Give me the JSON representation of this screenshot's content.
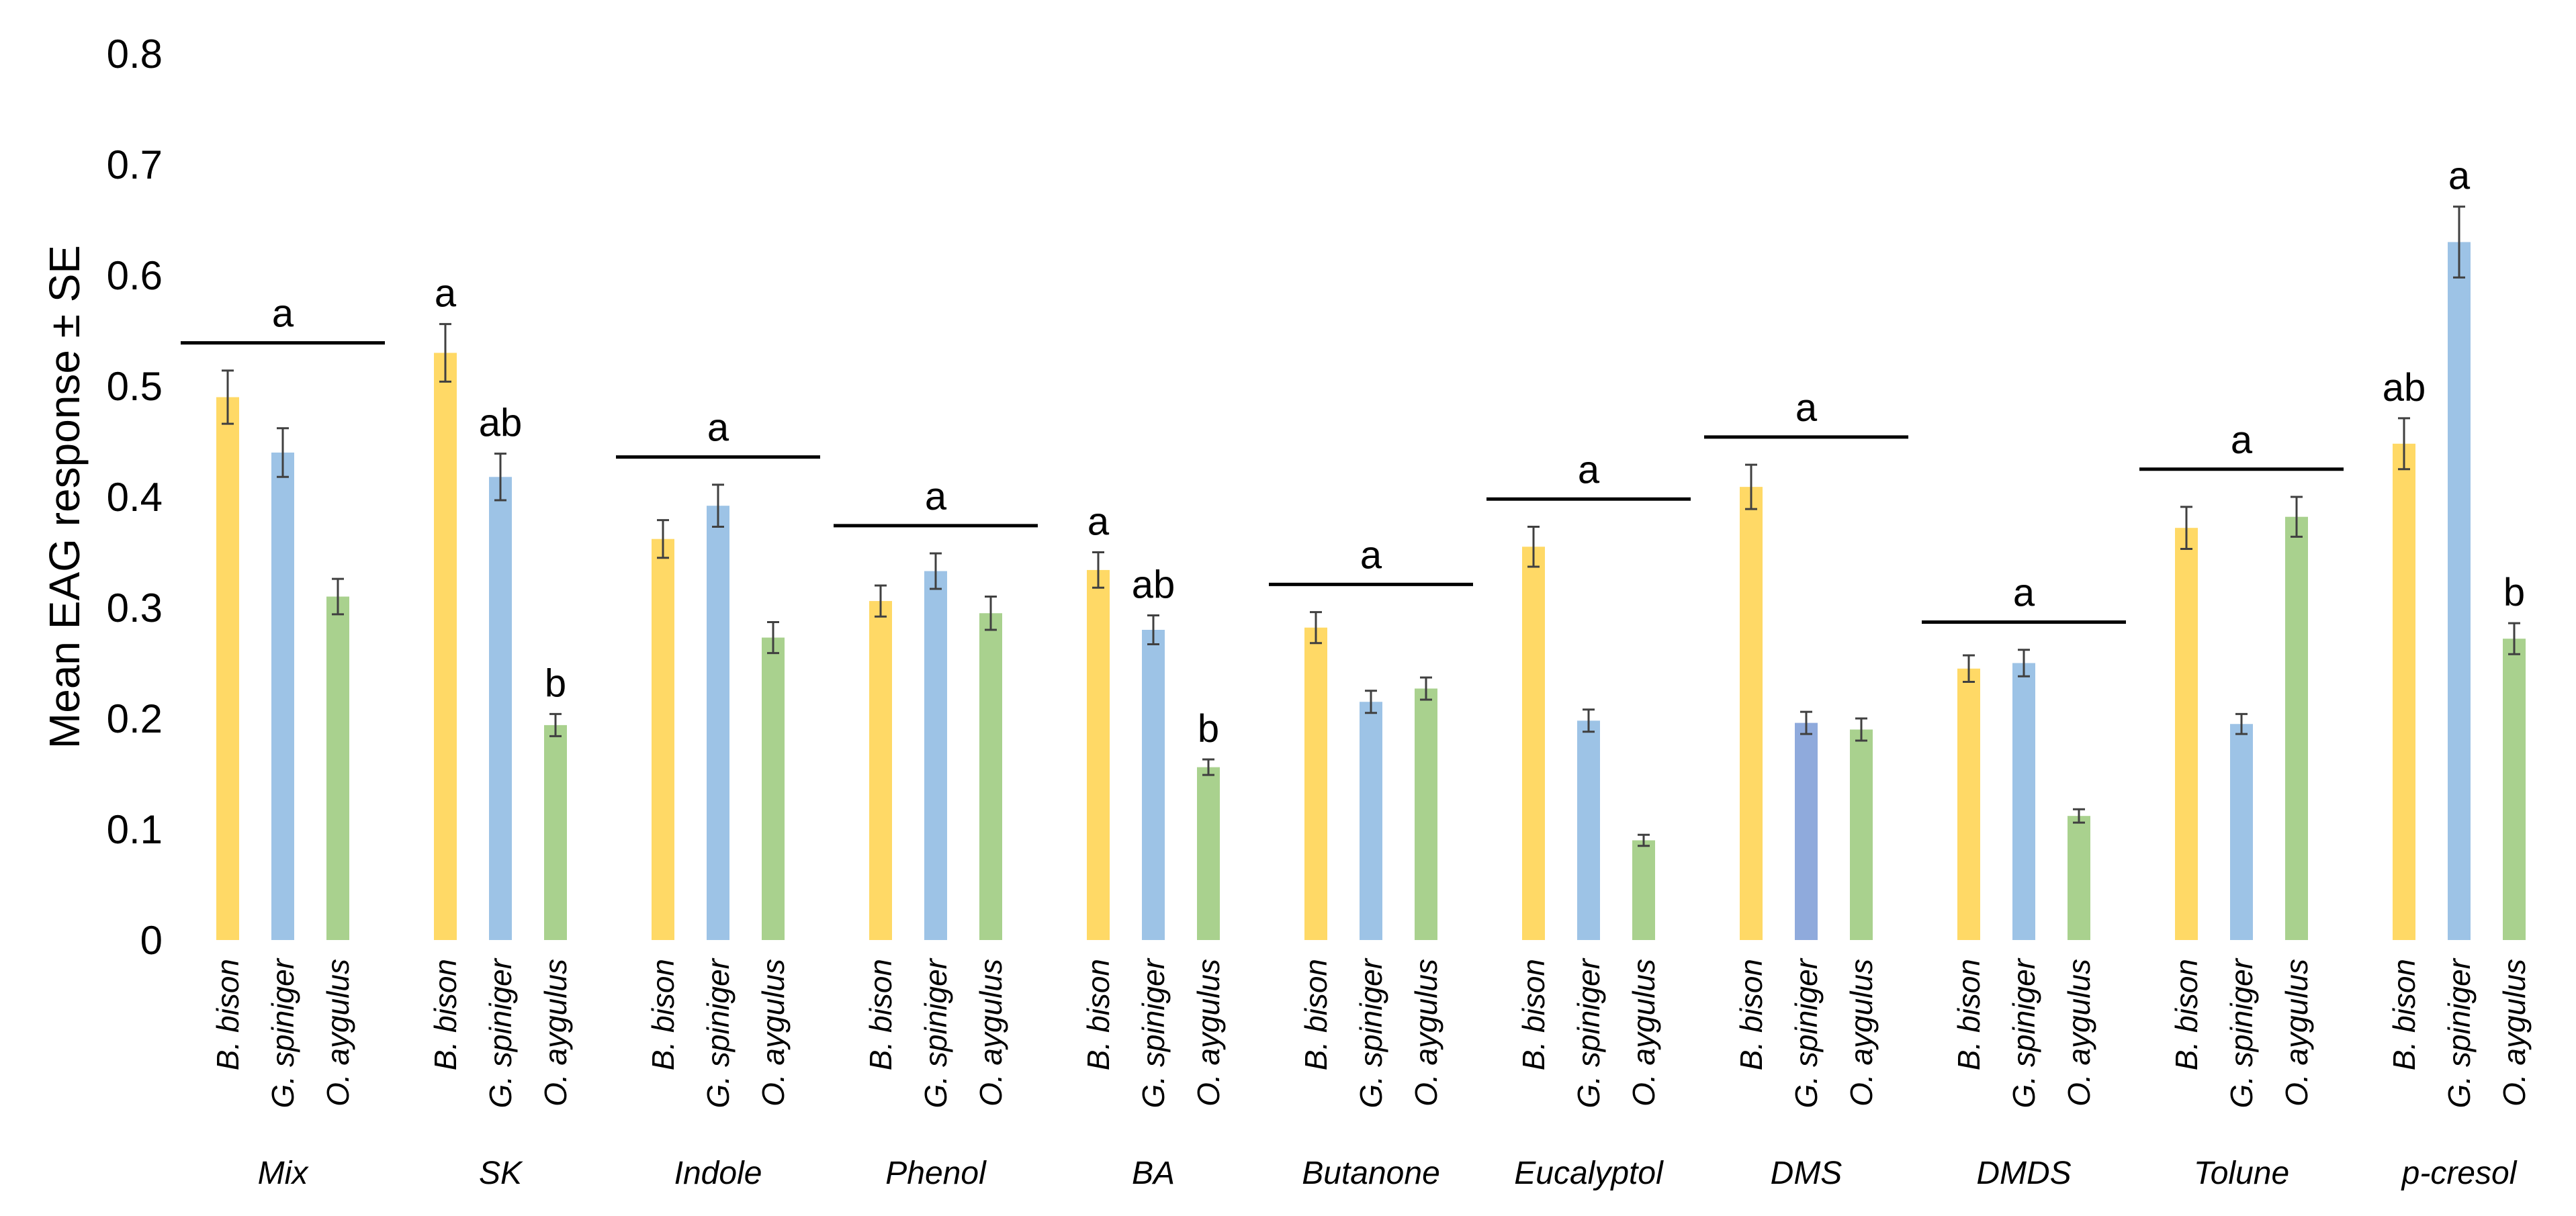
{
  "chart_data": {
    "type": "bar",
    "title": "",
    "xlabel": "",
    "ylabel": "Mean EAG response ± SE",
    "ylim": [
      0,
      0.8
    ],
    "yticks": [
      "0",
      "0.1",
      "0.2",
      "0.3",
      "0.4",
      "0.5",
      "0.6",
      "0.7",
      "0.8"
    ],
    "grid": false,
    "legend": "none",
    "species": [
      "B. bison",
      "G. spiniger",
      "O. aygulus"
    ],
    "colors": {
      "B. bison": "#FFD966",
      "G. spiniger": "#9DC3E6",
      "O. aygulus": "#A9D18E",
      "G. spiniger (DMS)": "#8FAADC"
    },
    "groups": [
      {
        "name": "Mix",
        "values": [
          0.49,
          0.44,
          0.31
        ],
        "se": [
          0.024,
          0.022,
          0.016
        ],
        "letters": [],
        "bar_letter": "a"
      },
      {
        "name": "SK",
        "values": [
          0.53,
          0.418,
          0.194
        ],
        "se": [
          0.026,
          0.021,
          0.01
        ],
        "letters": [
          "a",
          "ab",
          "b"
        ]
      },
      {
        "name": "Indole",
        "values": [
          0.362,
          0.392,
          0.273
        ],
        "se": [
          0.017,
          0.019,
          0.014
        ],
        "letters": [],
        "bar_letter": "a"
      },
      {
        "name": "Phenol",
        "values": [
          0.306,
          0.333,
          0.295
        ],
        "se": [
          0.014,
          0.016,
          0.015
        ],
        "letters": [],
        "bar_letter": "a"
      },
      {
        "name": "BA",
        "values": [
          0.334,
          0.28,
          0.156
        ],
        "se": [
          0.016,
          0.013,
          0.007
        ],
        "letters": [
          "a",
          "ab",
          "b"
        ]
      },
      {
        "name": "Butanone",
        "values": [
          0.282,
          0.215,
          0.227
        ],
        "se": [
          0.014,
          0.01,
          0.01
        ],
        "letters": [],
        "bar_letter": "a"
      },
      {
        "name": "Eucalyptol",
        "values": [
          0.355,
          0.198,
          0.09
        ],
        "se": [
          0.018,
          0.01,
          0.005
        ],
        "letters": [],
        "bar_letter": "a"
      },
      {
        "name": "DMS",
        "values": [
          0.409,
          0.196,
          0.19
        ],
        "se": [
          0.02,
          0.01,
          0.01
        ],
        "letters": [],
        "bar_letter": "a"
      },
      {
        "name": "DMDS",
        "values": [
          0.245,
          0.25,
          0.112
        ],
        "se": [
          0.012,
          0.012,
          0.006
        ],
        "letters": [],
        "bar_letter": "a"
      },
      {
        "name": "Tolune",
        "values": [
          0.372,
          0.195,
          0.382
        ],
        "se": [
          0.019,
          0.009,
          0.018
        ],
        "letters": [],
        "bar_letter": "a"
      },
      {
        "name": "p-cresol",
        "values": [
          0.448,
          0.63,
          0.272
        ],
        "se": [
          0.023,
          0.032,
          0.014
        ],
        "letters": [
          "ab",
          "a",
          "b"
        ]
      }
    ]
  }
}
